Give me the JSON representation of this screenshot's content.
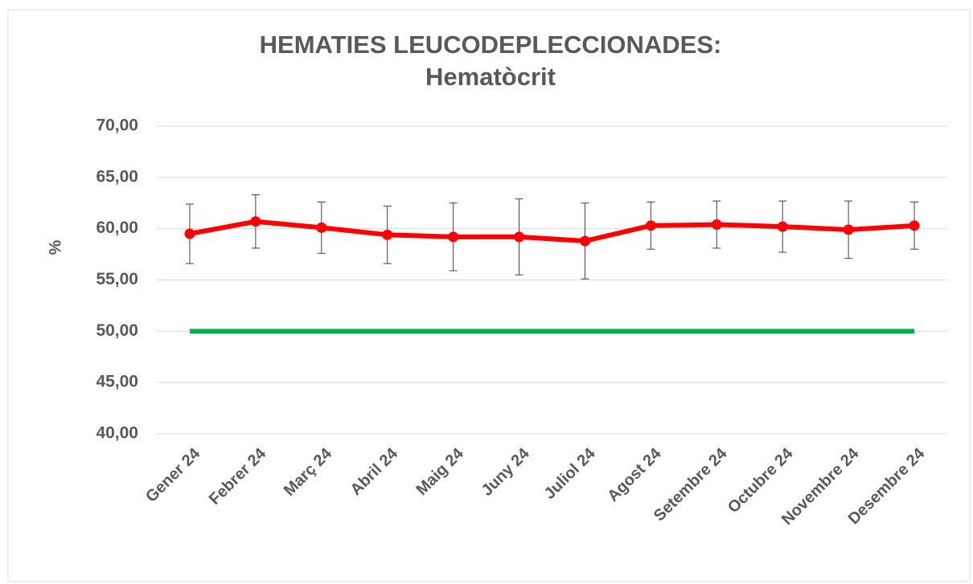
{
  "chart_data": {
    "type": "line",
    "title": "HEMATIES LEUCODEPLECCIONADES:",
    "subtitle": "Hematòcrit",
    "ylabel": "%",
    "categories": [
      "Gener 24",
      "Febrer 24",
      "Març 24",
      "Abril 24",
      "Maig 24",
      "Juny 24",
      "Juliol 24",
      "Agost 24",
      "Setembre 24",
      "Octubre 24",
      "Novembre 24",
      "Desembre 24"
    ],
    "series": [
      {
        "color": "#ff0000",
        "values": [
          59.5,
          60.7,
          60.1,
          59.4,
          59.2,
          59.2,
          58.8,
          60.3,
          60.4,
          60.2,
          59.9,
          60.3
        ],
        "errors": [
          2.9,
          2.6,
          2.5,
          2.8,
          3.3,
          3.7,
          3.7,
          2.3,
          2.3,
          2.5,
          2.8,
          2.3
        ]
      },
      {
        "color": "#00b050",
        "values": [
          50,
          50,
          50,
          50,
          50,
          50,
          50,
          50,
          50,
          50,
          50,
          50
        ]
      }
    ],
    "ylim": [
      40,
      70
    ],
    "yticks": [
      {
        "value": 40,
        "label": "40,00"
      },
      {
        "value": 45,
        "label": "45,00"
      },
      {
        "value": 50,
        "label": "50,00"
      },
      {
        "value": 55,
        "label": "55,00"
      },
      {
        "value": 60,
        "label": "60,00"
      },
      {
        "value": 65,
        "label": "65,00"
      },
      {
        "value": 70,
        "label": "70,00"
      }
    ],
    "grid": true
  }
}
